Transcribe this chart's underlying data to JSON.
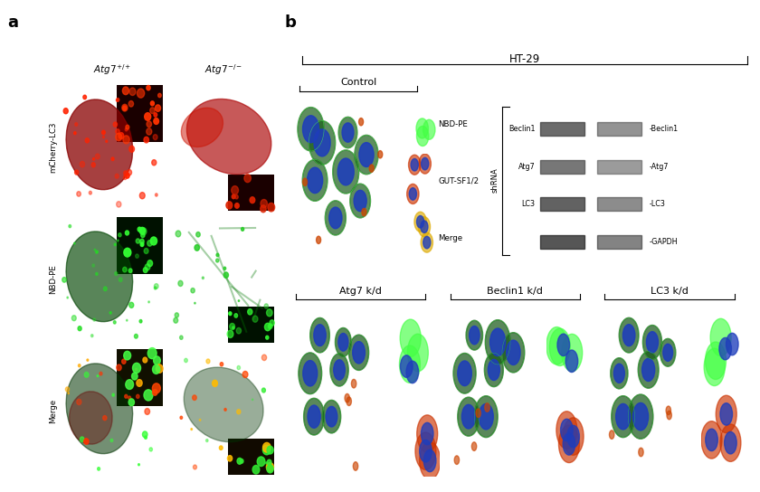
{
  "fig_width": 8.4,
  "fig_height": 5.44,
  "bg_color": "#ffffff",
  "panel_a_label": "a",
  "panel_b_label": "b",
  "label_fontsize": 13,
  "label_fontweight": "bold",
  "row_labels": [
    "mCherry-LC3",
    "NBD-PE",
    "Merge"
  ],
  "ht29_label": "HT-29",
  "control_label": "Control",
  "atg7kd_label": "Atg7 k/d",
  "beclin1kd_label": "Beclin1 k/d",
  "lc3kd_label": "LC3 k/d",
  "shrna_label": "shRNA",
  "nbd_pe_label": "NBD-PE",
  "gut_sf12_label": "GUT-SF1/2",
  "merge_label": "Merge",
  "wb_beclin1": "Beclin1",
  "wb_atg7": "Atg7",
  "wb_lc3": "LC3",
  "wb_gapdh": "GAPDH"
}
